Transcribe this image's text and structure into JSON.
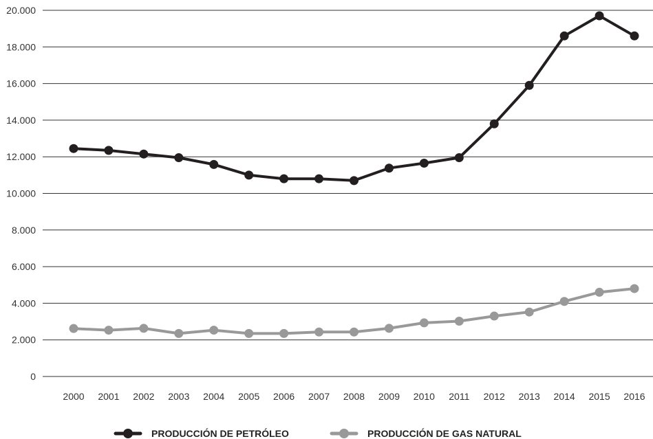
{
  "chart_data": {
    "type": "line",
    "title": "",
    "xlabel": "",
    "ylabel": "",
    "categories": [
      "2000",
      "2001",
      "2002",
      "2003",
      "2004",
      "2005",
      "2006",
      "2007",
      "2008",
      "2009",
      "2010",
      "2011",
      "2012",
      "2013",
      "2014",
      "2015",
      "2016"
    ],
    "ylim": [
      0,
      20000
    ],
    "yticks": [
      0,
      2000,
      4000,
      6000,
      8000,
      10000,
      12000,
      14000,
      16000,
      18000,
      20000
    ],
    "ytick_labels": [
      "0",
      "2.000",
      "4.000",
      "6.000",
      "8.000",
      "10.000",
      "12.000",
      "14.000",
      "16.000",
      "18.000",
      "20.000"
    ],
    "grid": true,
    "legend_position": "bottom-center",
    "series": [
      {
        "name": "PRODUCCIÓN DE PETRÓLEO",
        "color": "#231f20",
        "values": [
          12450,
          12350,
          12150,
          11950,
          11580,
          11000,
          10800,
          10800,
          10700,
          11380,
          11650,
          11950,
          13800,
          15900,
          18600,
          19700,
          18600
        ]
      },
      {
        "name": "PRODUCCIÓN DE GAS NATURAL",
        "color": "#999999",
        "values": [
          2620,
          2530,
          2630,
          2350,
          2530,
          2350,
          2350,
          2430,
          2430,
          2630,
          2930,
          3020,
          3300,
          3520,
          4100,
          4600,
          4800
        ]
      }
    ]
  }
}
